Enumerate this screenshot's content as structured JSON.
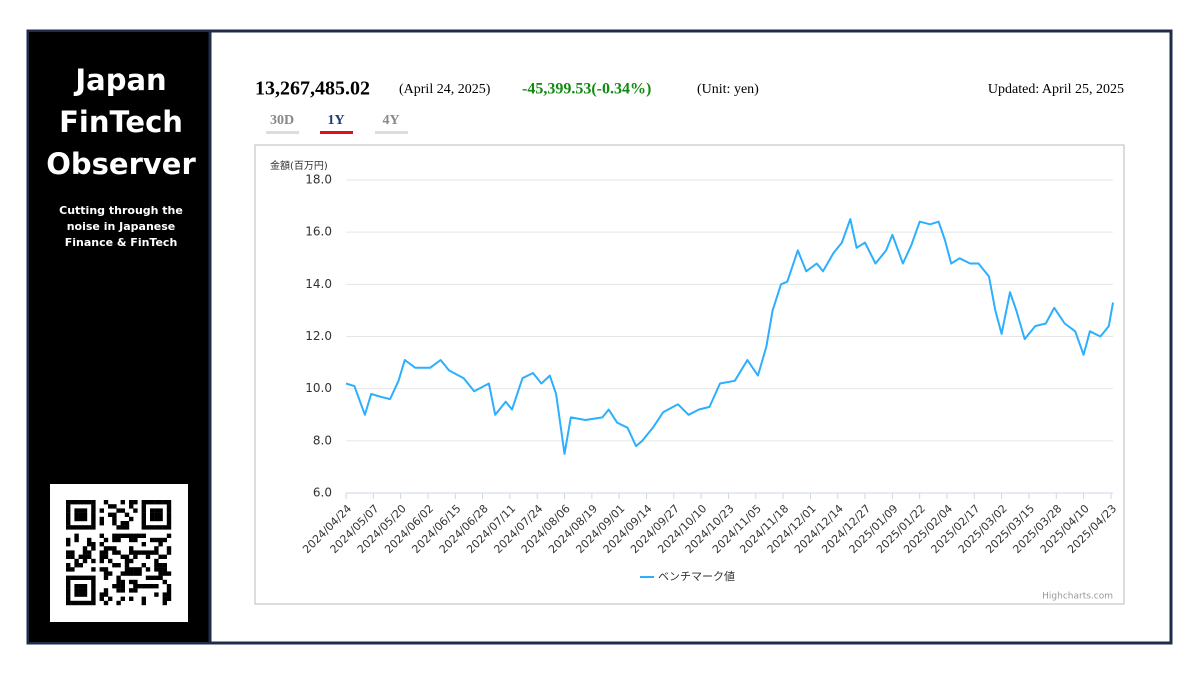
{
  "sidebar": {
    "title_lines": [
      "Japan",
      "FinTech",
      "Observer"
    ],
    "tagline_lines": [
      "Cutting through the",
      "noise in Japanese",
      "Finance & FinTech"
    ]
  },
  "header": {
    "value": "13,267,485.02",
    "date": "(April 24, 2025)",
    "change": "-45,399.53(-0.34%)",
    "unit": "(Unit: yen)",
    "updated": "Updated: April 25, 2025",
    "tabs": [
      "30D",
      "1Y",
      "4Y"
    ]
  },
  "chart_data": {
    "type": "line",
    "y_label": "金額(百万円)",
    "credit": "Highcharts.com",
    "grid": true,
    "legend": "bottom",
    "x": [
      "2024/04/24",
      "2024/04/28",
      "2024/05/03",
      "2024/05/06",
      "2024/05/10",
      "2024/05/15",
      "2024/05/19",
      "2024/05/22",
      "2024/05/27",
      "2024/06/03",
      "2024/06/08",
      "2024/06/12",
      "2024/06/19",
      "2024/06/24",
      "2024/07/01",
      "2024/07/04",
      "2024/07/09",
      "2024/07/12",
      "2024/07/17",
      "2024/07/22",
      "2024/07/26",
      "2024/07/30",
      "2024/08/02",
      "2024/08/06",
      "2024/08/09",
      "2024/08/16",
      "2024/08/24",
      "2024/08/27",
      "2024/08/31",
      "2024/09/05",
      "2024/09/09",
      "2024/09/12",
      "2024/09/17",
      "2024/09/22",
      "2024/09/29",
      "2024/10/04",
      "2024/10/09",
      "2024/10/14",
      "2024/10/19",
      "2024/10/26",
      "2024/11/01",
      "2024/11/06",
      "2024/11/10",
      "2024/11/13",
      "2024/11/17",
      "2024/11/20",
      "2024/11/25",
      "2024/11/29",
      "2024/12/04",
      "2024/12/07",
      "2024/12/12",
      "2024/12/16",
      "2024/12/20",
      "2024/12/23",
      "2024/12/27",
      "2025/01/01",
      "2025/01/06",
      "2025/01/09",
      "2025/01/14",
      "2025/01/18",
      "2025/01/22",
      "2025/01/27",
      "2025/01/31",
      "2025/02/03",
      "2025/02/06",
      "2025/02/10",
      "2025/02/15",
      "2025/02/19",
      "2025/02/24",
      "2025/02/27",
      "2025/03/02",
      "2025/03/06",
      "2025/03/09",
      "2025/03/13",
      "2025/03/18",
      "2025/03/23",
      "2025/03/27",
      "2025/04/01",
      "2025/04/06",
      "2025/04/10",
      "2025/04/13",
      "2025/04/18",
      "2025/04/22",
      "2025/04/24"
    ],
    "series": [
      {
        "name": "ベンチマーク値",
        "color": "#2caffe",
        "values": [
          10.2,
          10.1,
          9.0,
          9.8,
          9.7,
          9.6,
          10.3,
          11.1,
          10.8,
          10.8,
          11.1,
          10.7,
          10.4,
          9.9,
          10.2,
          9.0,
          9.5,
          9.2,
          10.4,
          10.6,
          10.2,
          10.5,
          9.8,
          7.5,
          8.9,
          8.8,
          8.9,
          9.2,
          8.7,
          8.5,
          7.8,
          8.0,
          8.5,
          9.1,
          9.4,
          9.0,
          9.2,
          9.3,
          10.2,
          10.3,
          11.1,
          10.5,
          11.6,
          13.0,
          14.0,
          14.1,
          15.3,
          14.5,
          14.8,
          14.5,
          15.2,
          15.6,
          16.5,
          15.4,
          15.6,
          14.8,
          15.3,
          15.9,
          14.8,
          15.5,
          16.4,
          16.3,
          16.4,
          15.7,
          14.8,
          15.0,
          14.8,
          14.8,
          14.3,
          13.0,
          12.1,
          13.7,
          13.0,
          11.9,
          12.4,
          12.5,
          13.1,
          12.5,
          12.2,
          11.3,
          12.2,
          12.0,
          12.4,
          13.3
        ]
      }
    ],
    "xlim": [
      "2024/04/24",
      "2025/04/24"
    ],
    "xticks": [
      "2024/04/24",
      "2024/05/07",
      "2024/05/20",
      "2024/06/02",
      "2024/06/15",
      "2024/06/28",
      "2024/07/11",
      "2024/07/24",
      "2024/08/06",
      "2024/08/19",
      "2024/09/01",
      "2024/09/14",
      "2024/09/27",
      "2024/10/10",
      "2024/10/23",
      "2024/11/05",
      "2024/11/18",
      "2024/12/01",
      "2024/12/14",
      "2024/12/27",
      "2025/01/09",
      "2025/01/22",
      "2025/02/04",
      "2025/02/17",
      "2025/03/02",
      "2025/03/15",
      "2025/03/28",
      "2025/04/10",
      "2025/04/23"
    ],
    "ylim": [
      6,
      18
    ],
    "yticks": [
      {
        "value": 6,
        "label": "6.0"
      },
      {
        "value": 8,
        "label": "8.0"
      },
      {
        "value": 10,
        "label": "10.0"
      },
      {
        "value": 12,
        "label": "12.0"
      },
      {
        "value": 14,
        "label": "14.0"
      },
      {
        "value": 16,
        "label": "16.0"
      },
      {
        "value": 18,
        "label": "18.0"
      }
    ]
  }
}
